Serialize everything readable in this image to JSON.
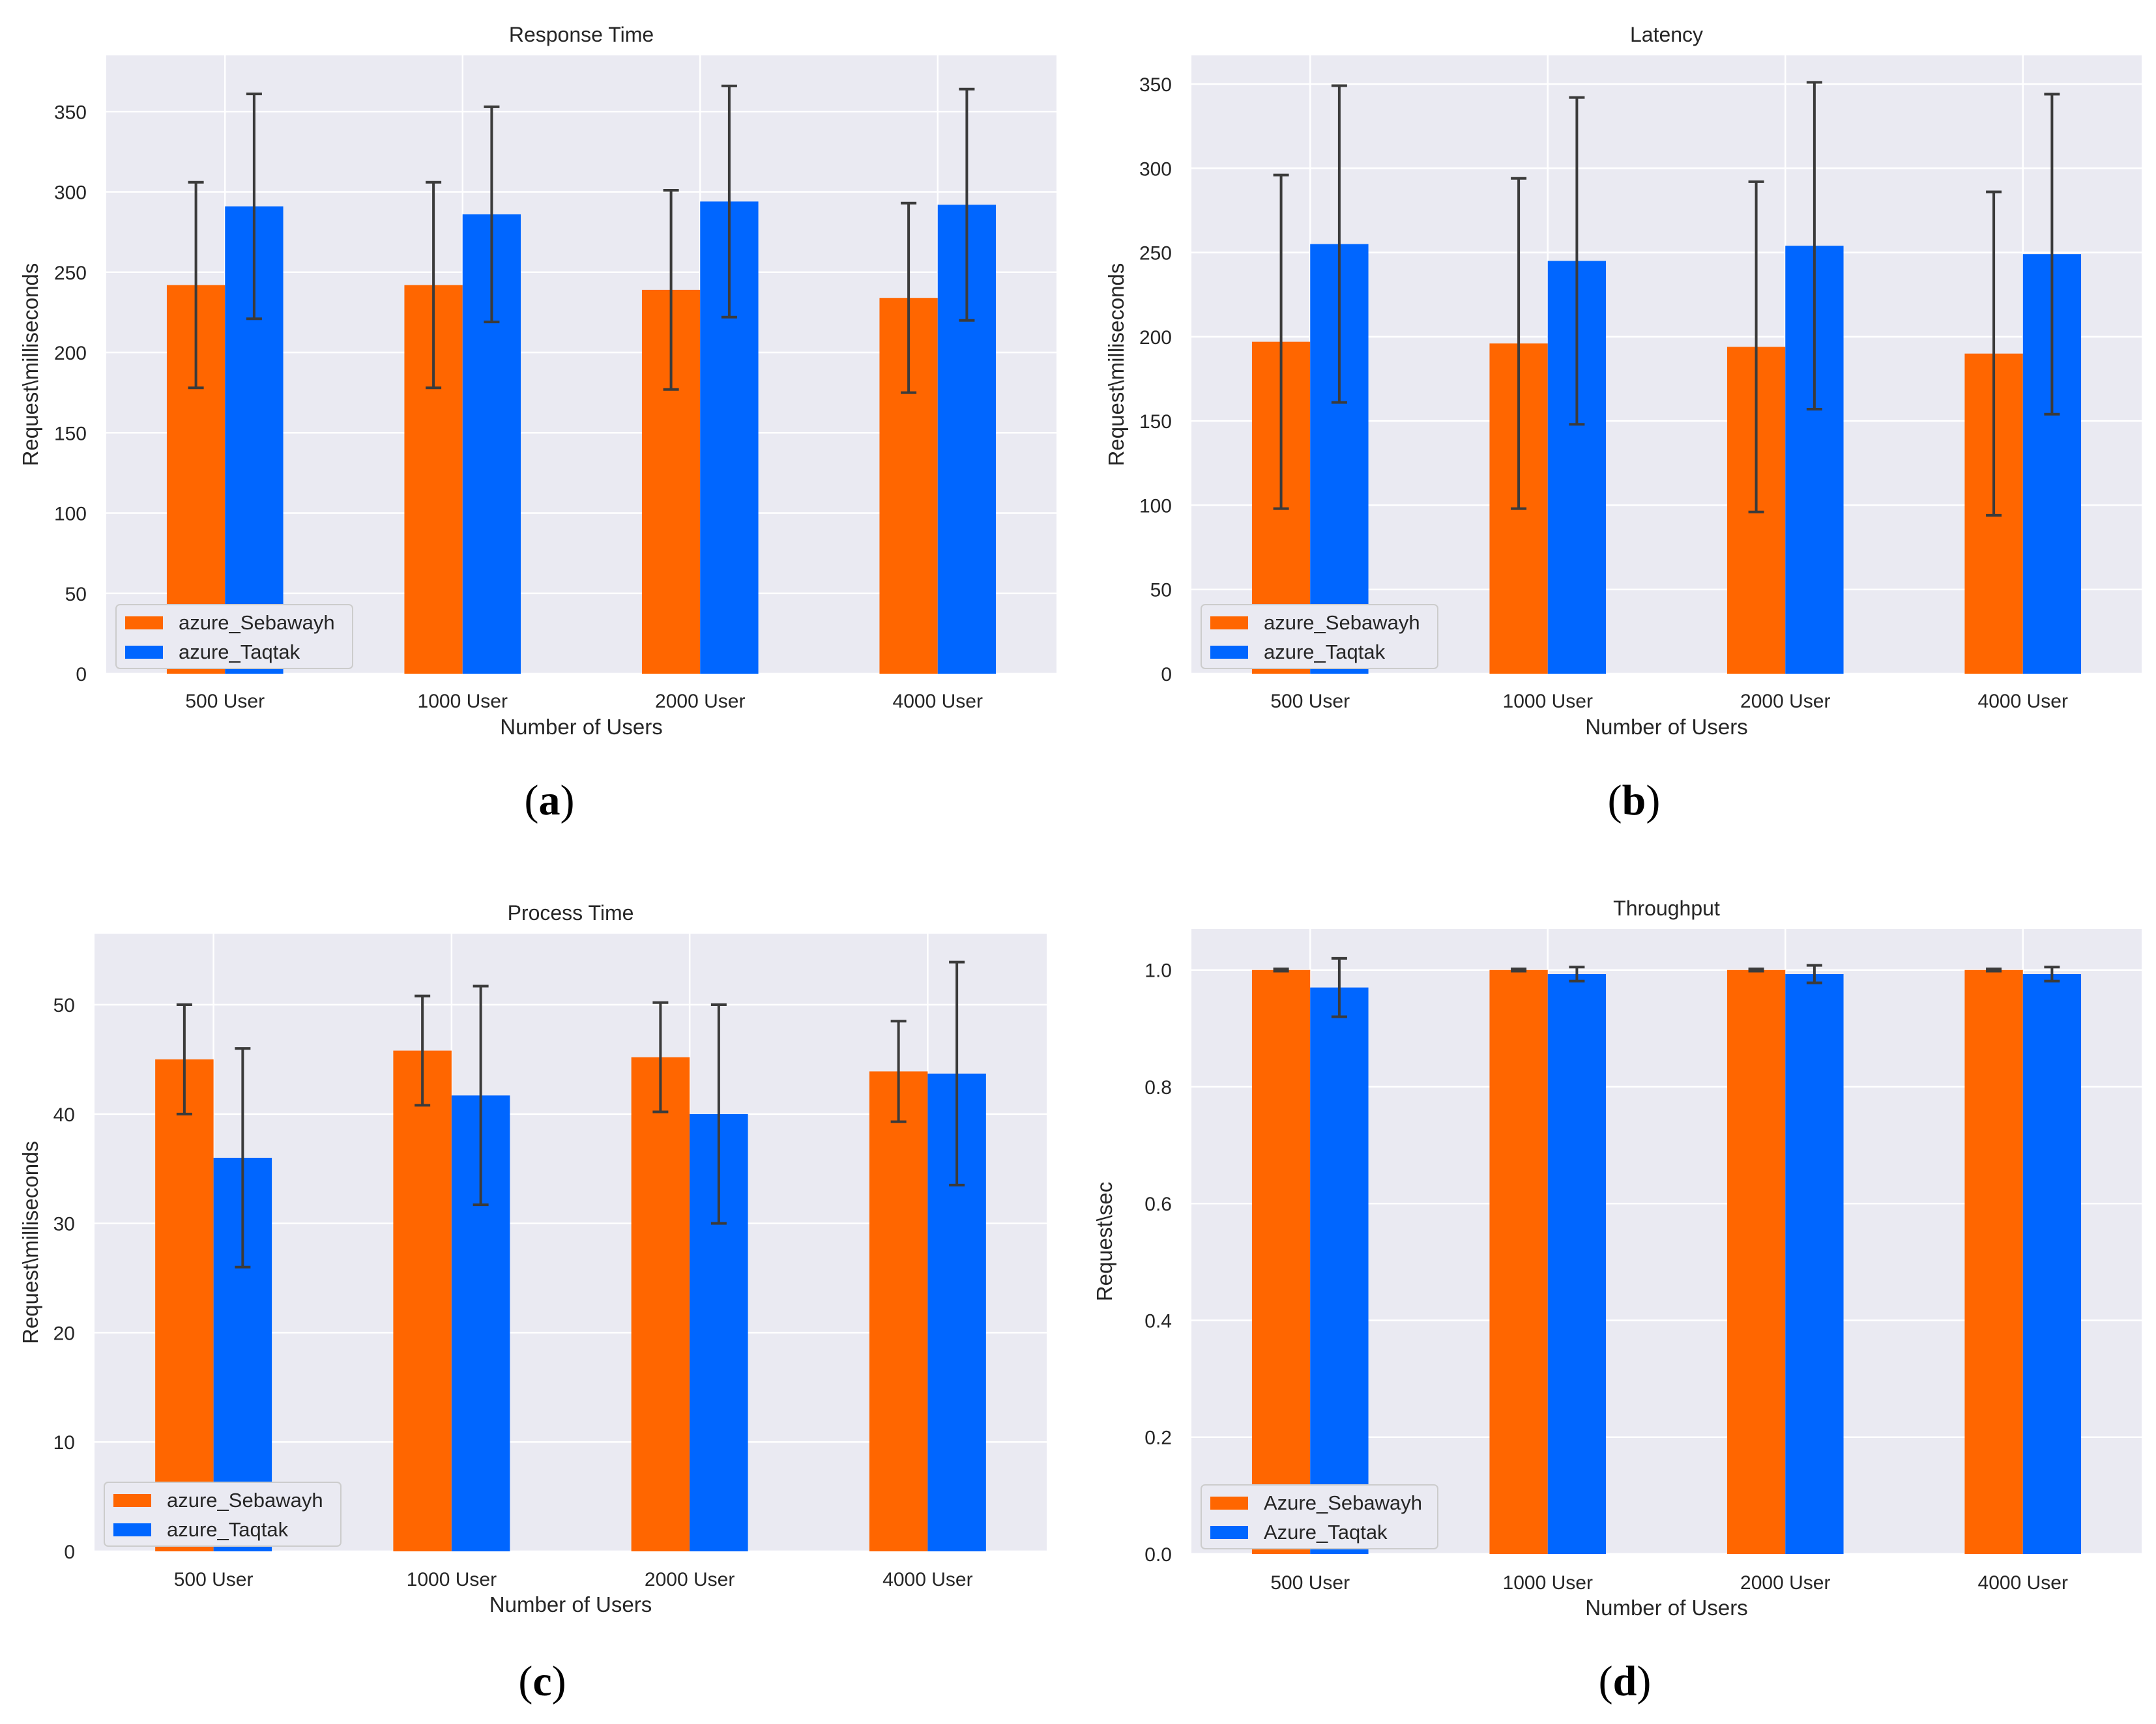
{
  "colors": {
    "orange": "#ff6600",
    "blue": "#0066ff",
    "plot_bg": "#eaeaf2",
    "grid": "#ffffff",
    "error_bar": "#3b3b3b"
  },
  "chart_data": [
    {
      "id": "a",
      "type": "bar",
      "title": "Response Time",
      "xlabel": "Number of Users",
      "ylabel": "Request\\milliseconds",
      "caption": {
        "open": "(",
        "letter": "a",
        "close": ")"
      },
      "categories": [
        "500 User",
        "1000 User",
        "2000 User",
        "4000 User"
      ],
      "ylim": [
        0,
        385
      ],
      "yticks": [
        0,
        50,
        100,
        150,
        200,
        250,
        300,
        350
      ],
      "legend_position": "lower-left",
      "series": [
        {
          "name": "azure_Sebawayh",
          "color": "#ff6600",
          "values": [
            242,
            242,
            239,
            234
          ],
          "err": [
            64,
            64,
            62,
            59
          ]
        },
        {
          "name": "azure_Taqtak",
          "color": "#0066ff",
          "values": [
            291,
            286,
            294,
            292
          ],
          "err": [
            70,
            67,
            72,
            72
          ]
        }
      ]
    },
    {
      "id": "b",
      "type": "bar",
      "title": "Latency",
      "xlabel": "Number of Users",
      "ylabel": "Request\\milliseconds",
      "caption": {
        "open": "(",
        "letter": "b",
        "close": ")"
      },
      "categories": [
        "500 User",
        "1000 User",
        "2000 User",
        "4000 User"
      ],
      "ylim": [
        0,
        367
      ],
      "yticks": [
        0,
        50,
        100,
        150,
        200,
        250,
        300,
        350
      ],
      "legend_position": "lower-left",
      "series": [
        {
          "name": "azure_Sebawayh",
          "color": "#ff6600",
          "values": [
            197,
            196,
            194,
            190
          ],
          "err": [
            99,
            98,
            98,
            96
          ]
        },
        {
          "name": "azure_Taqtak",
          "color": "#0066ff",
          "values": [
            255,
            245,
            254,
            249
          ],
          "err": [
            94,
            97,
            97,
            95
          ]
        }
      ]
    },
    {
      "id": "c",
      "type": "bar",
      "title": "Process Time",
      "xlabel": "Number of Users",
      "ylabel": "Request\\milliseconds",
      "caption": {
        "open": "(",
        "letter": "c",
        "close": ")"
      },
      "categories": [
        "500 User",
        "1000 User",
        "2000 User",
        "4000 User"
      ],
      "ylim": [
        0,
        56.5
      ],
      "yticks": [
        0,
        10,
        20,
        30,
        40,
        50
      ],
      "legend_position": "lower-left",
      "series": [
        {
          "name": "azure_Sebawayh",
          "color": "#ff6600",
          "values": [
            45.0,
            45.8,
            45.2,
            43.9
          ],
          "err": [
            5.0,
            5.0,
            5.0,
            4.6
          ]
        },
        {
          "name": "azure_Taqtak",
          "color": "#0066ff",
          "values": [
            36.0,
            41.7,
            40.0,
            43.7
          ],
          "err": [
            10.0,
            10.0,
            10.0,
            10.2
          ]
        }
      ]
    },
    {
      "id": "d",
      "type": "bar",
      "title": "Throughput",
      "xlabel": "Number of Users",
      "ylabel": "Request\\sec",
      "caption": {
        "open": "(",
        "letter": "d",
        "close": ")"
      },
      "categories": [
        "500 User",
        "1000 User",
        "2000 User",
        "4000 User"
      ],
      "ylim": [
        0,
        1.07
      ],
      "yticks": [
        0.0,
        0.2,
        0.4,
        0.6,
        0.8,
        1.0
      ],
      "tick_decimals": 1,
      "legend_position": "lower-left",
      "series": [
        {
          "name": "Azure_Sebawayh",
          "color": "#ff6600",
          "values": [
            1.0,
            1.0,
            1.0,
            1.0
          ],
          "err": [
            0.002,
            0.002,
            0.002,
            0.002
          ]
        },
        {
          "name": "Azure_Taqtak",
          "color": "#0066ff",
          "values": [
            0.97,
            0.993,
            0.993,
            0.993
          ],
          "err": [
            0.05,
            0.012,
            0.015,
            0.012
          ]
        }
      ]
    }
  ]
}
